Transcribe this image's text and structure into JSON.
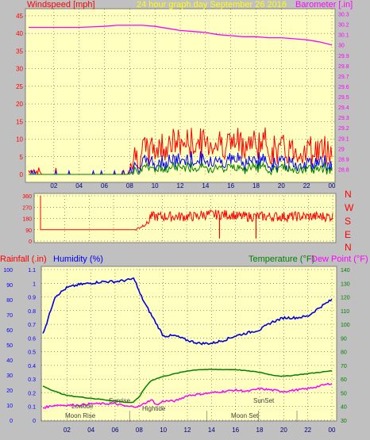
{
  "header": {
    "left_label": "Windspeed [mph]",
    "center_label": "24 hour graph.day   September 26 2016",
    "right_label": "Barometer [.in]"
  },
  "direction_labels": [
    "N",
    "W",
    "S",
    "E",
    "N"
  ],
  "lower_header": {
    "rain_label": "Rainfall (.in)",
    "humidity_label": "Humidity (%)",
    "temp_label": "Temperature (°F)",
    "dew_label": "Dew Point (°F)"
  },
  "events": {
    "lowtide": "Lowtide",
    "moonrise": "Moon Rise",
    "sunrise": "Sunrise",
    "hightide": "Hightide",
    "sunset": "SunSet",
    "moonset": "Moon Set"
  },
  "colors": {
    "panel_bg": "#ffffc0",
    "gust": "#ff0000",
    "avg": "#0000ff",
    "min": "#008000",
    "barometer": "#ff00ff",
    "direction": "#ff0000",
    "humidity": "#0000e0",
    "temperature": "#008000",
    "dewpoint": "#ff00ff",
    "grid": "#000000"
  },
  "chart_data": [
    {
      "type": "line",
      "name": "wind",
      "x_ticks": [
        "02",
        "04",
        "06",
        "08",
        "10",
        "12",
        "14",
        "16",
        "18",
        "20",
        "22",
        "00"
      ],
      "y_left": {
        "label": "Windspeed [mph]",
        "ticks": [
          0,
          5,
          10,
          15,
          20,
          25,
          30,
          35,
          40,
          45
        ],
        "ylim": [
          0,
          47
        ]
      },
      "y_right": {
        "label": "Barometer [.in]",
        "ticks": [
          "28.8",
          "28.9",
          "29",
          "29.1",
          "29.2",
          "29.3",
          "29.4",
          "29.5",
          "29.6",
          "29.7",
          "29.8",
          "29.9",
          "30",
          "30.1",
          "30.2",
          "30.3"
        ],
        "ylim": [
          28.75,
          30.35
        ]
      },
      "series": [
        {
          "name": "Barometer",
          "x": [
            0,
            2,
            4,
            6,
            7,
            8,
            9,
            10,
            11,
            12,
            13,
            14,
            15,
            16,
            17,
            18,
            19,
            20,
            21,
            22,
            23,
            24
          ],
          "values": [
            30.17,
            30.17,
            30.17,
            30.18,
            30.19,
            30.19,
            30.19,
            30.18,
            30.16,
            30.14,
            30.13,
            30.12,
            30.1,
            30.09,
            30.08,
            30.08,
            30.07,
            30.07,
            30.06,
            30.05,
            30.03,
            30.0
          ]
        }
      ]
    },
    {
      "type": "line",
      "name": "wind_direction",
      "x_ticks": [
        "02",
        "04",
        "06",
        "08",
        "10",
        "12",
        "14",
        "16",
        "18",
        "20",
        "22",
        "00"
      ],
      "y_ticks": [
        0,
        90,
        180,
        270,
        360
      ],
      "ylim": [
        0,
        360
      ]
    },
    {
      "type": "line",
      "name": "temperature_humidity",
      "x_ticks": [
        "02",
        "04",
        "06",
        "08",
        "10",
        "12",
        "14",
        "16",
        "18",
        "20",
        "22",
        "00"
      ],
      "y_left_outer": {
        "label": "Humidity (%)",
        "ticks": [
          0,
          10,
          20,
          30,
          40,
          50,
          60,
          70,
          80,
          90,
          100
        ],
        "ylim": [
          0,
          100
        ]
      },
      "y_left_inner": {
        "label": "Rainfall (.in)",
        "ticks": [
          "0",
          "0.1",
          "0.2",
          "0.3",
          "0.4",
          "0.5",
          "0.6",
          "0.7",
          "0.8",
          "0.9",
          "1",
          "1.1"
        ],
        "ylim": [
          0,
          1.1
        ]
      },
      "y_right": {
        "label": "Temperature (°F)",
        "ticks": [
          30,
          40,
          50,
          60,
          70,
          80,
          90,
          100,
          110,
          120,
          130,
          140
        ],
        "ylim": [
          30,
          140
        ]
      },
      "series": [
        {
          "name": "Humidity (%)",
          "x": [
            0,
            0.3,
            1,
            2,
            3,
            4,
            5,
            6,
            7,
            7.6,
            8,
            8.5,
            9,
            9.5,
            10,
            11,
            12,
            13,
            14,
            15,
            16,
            17,
            18,
            19,
            20,
            21,
            22,
            23,
            24
          ],
          "values": [
            58,
            64,
            82,
            88,
            90,
            91,
            92,
            92,
            93,
            94,
            85,
            77,
            70,
            63,
            56,
            56,
            53,
            51,
            51,
            53,
            56,
            58,
            60,
            65,
            68,
            68,
            69,
            75,
            80
          ]
        },
        {
          "name": "Temperature (°F)",
          "x": [
            0,
            1,
            2,
            3,
            4,
            5,
            6,
            7,
            7.5,
            8,
            8.5,
            9,
            10,
            11,
            12,
            13,
            14,
            15,
            16,
            17,
            18,
            19,
            20,
            21,
            22,
            23,
            24
          ],
          "values": [
            55,
            51,
            48,
            47,
            46,
            45,
            44,
            43,
            43,
            47,
            54,
            59,
            62,
            64,
            66,
            67,
            67,
            67,
            67,
            66,
            65,
            63,
            62,
            63,
            64,
            65,
            66
          ]
        },
        {
          "name": "Dew Point (°F)",
          "x": [
            0,
            1,
            2,
            3,
            4,
            5,
            6,
            7,
            8,
            9,
            9.5,
            10,
            11,
            12,
            13,
            14,
            15,
            16,
            17,
            18,
            19,
            20,
            21,
            22,
            23,
            24
          ],
          "values": [
            39,
            41,
            41,
            41,
            42,
            42,
            42,
            40,
            40,
            45,
            41,
            44,
            44,
            48,
            49,
            50,
            51,
            52,
            51,
            53,
            52,
            51,
            52,
            53,
            55,
            57
          ]
        }
      ]
    }
  ]
}
